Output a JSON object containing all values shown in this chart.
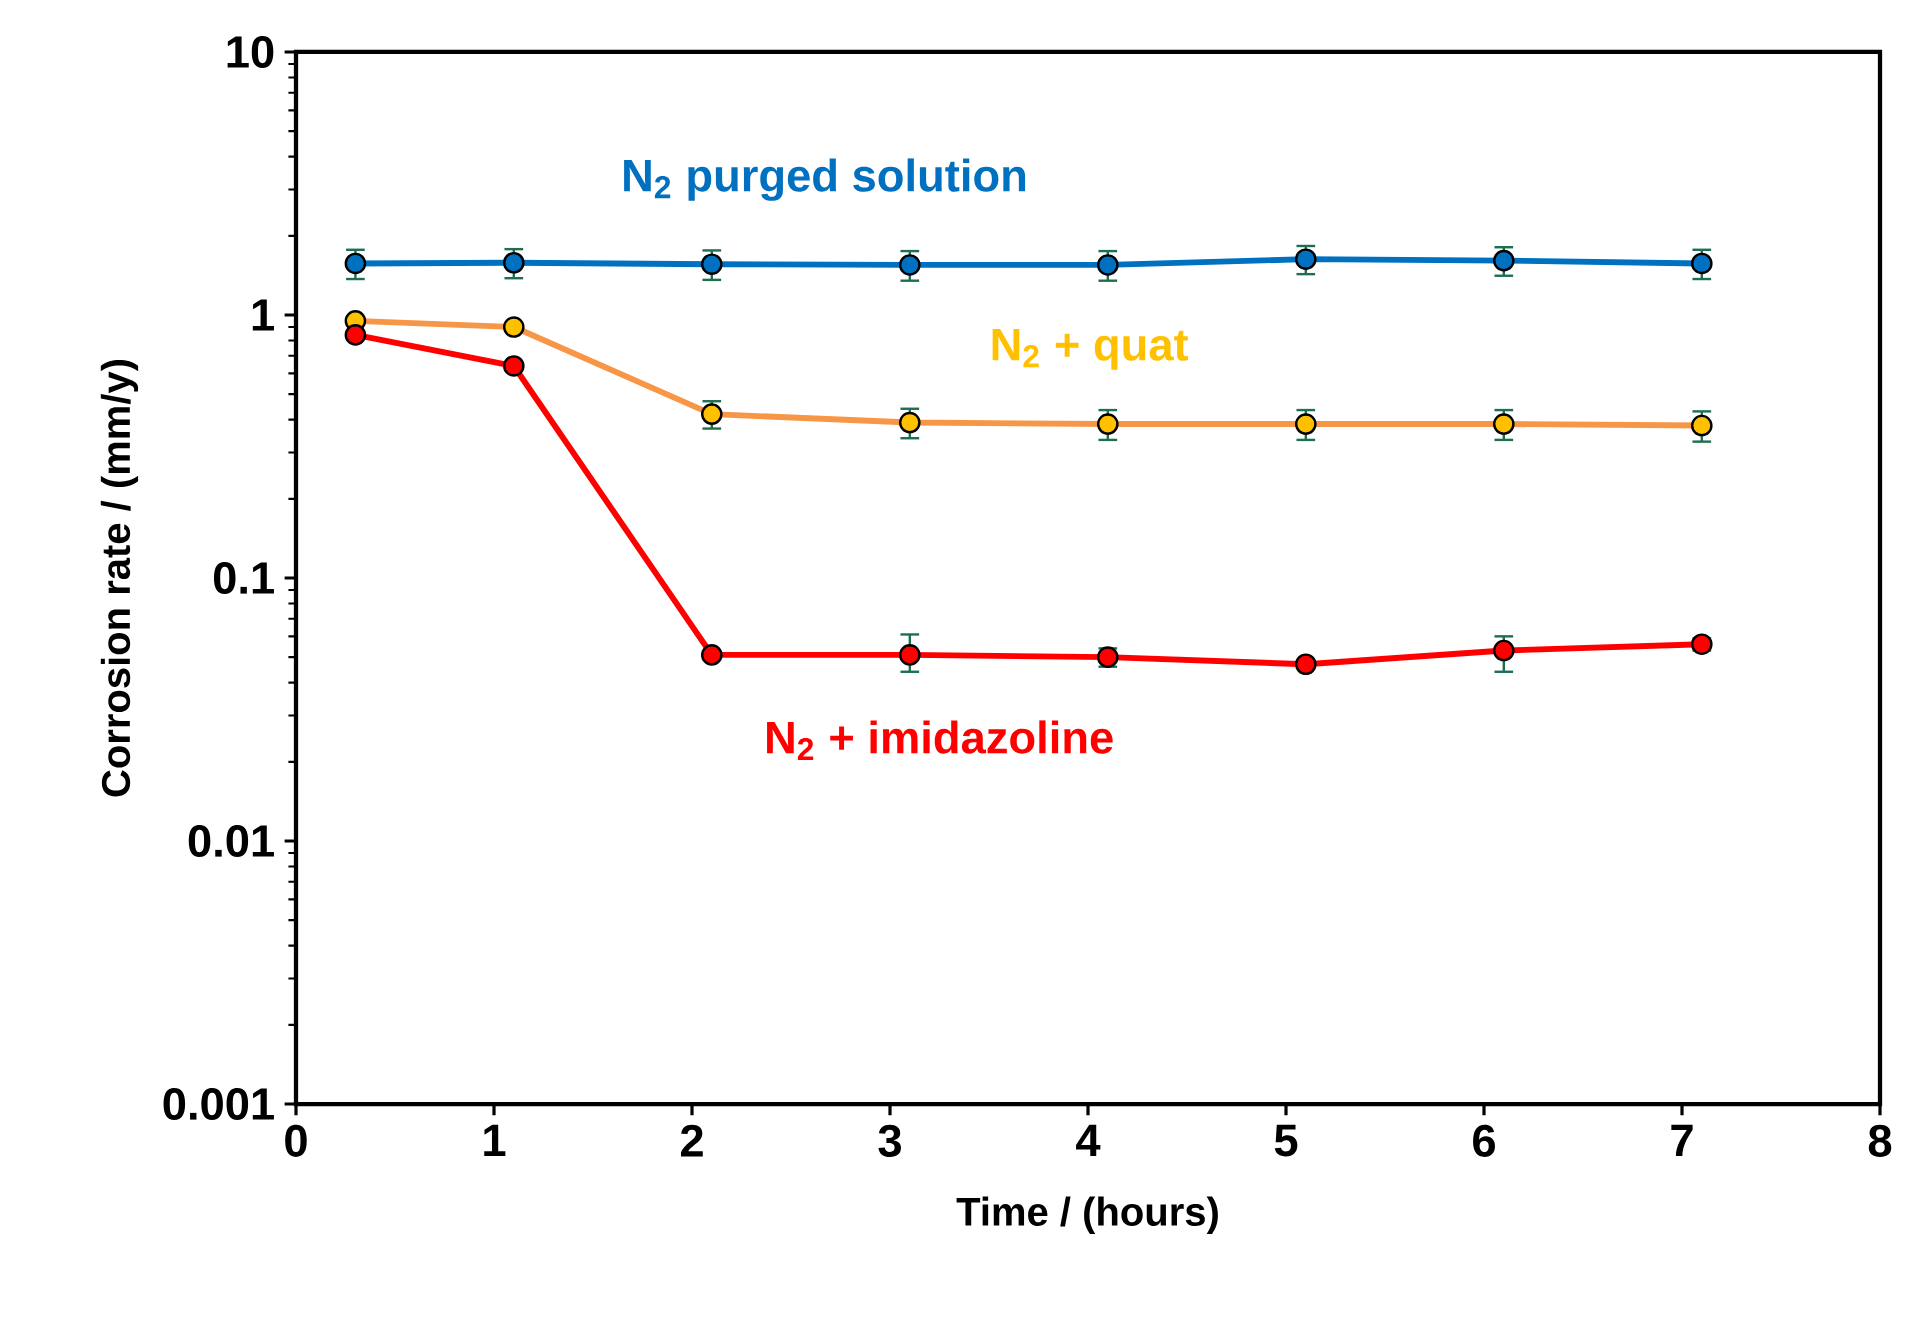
{
  "chart_data": {
    "type": "line",
    "xlabel": "Time / (hours)",
    "ylabel": "Corrosion rate / (mm/y)",
    "log": "y",
    "xlim": [
      0,
      8
    ],
    "xticks": [
      0,
      1,
      2,
      3,
      4,
      5,
      6,
      7,
      8
    ],
    "ylim": [
      0.001,
      10
    ],
    "yticks": [
      0.001,
      0.01,
      0.1,
      1,
      10
    ],
    "grid": false,
    "marker": "circle",
    "line_style": "solid",
    "x": [
      0.3,
      1.1,
      2.1,
      3.1,
      4.1,
      5.1,
      6.1,
      7.1
    ],
    "series": [
      {
        "name": "N$_{2}$ purged solution",
        "color": "#0070c0",
        "values": [
          1.57,
          1.58,
          1.56,
          1.55,
          1.55,
          1.63,
          1.61,
          1.57
        ],
        "errors": [
          0.2,
          0.2,
          0.2,
          0.2,
          0.2,
          0.2,
          0.2,
          0.2
        ]
      },
      {
        "name": "N$_{2}$ + quat",
        "color": "#f79646",
        "colors": [
          "#ffc000",
          "#ffc000",
          "#ffc000",
          "#ffc000",
          "#ffc000",
          "#ffc000",
          "#ffc000",
          "#ffc000"
        ],
        "values": [
          0.95,
          0.9,
          0.42,
          0.39,
          0.385,
          0.385,
          0.385,
          0.38
        ],
        "errors": [
          null,
          null,
          0.05,
          0.05,
          0.05,
          0.05,
          0.05,
          0.05
        ]
      },
      {
        "name": "N$_{2}$ + imidazoline",
        "color": "#ff0000",
        "values": [
          0.84,
          0.64,
          0.051,
          0.051,
          0.05,
          0.047,
          0.053,
          0.056
        ],
        "errors": [
          null,
          null,
          null,
          [
            0.044,
            0.061
          ],
          0.004,
          null,
          [
            0.044,
            0.06
          ],
          0.003
        ]
      }
    ]
  }
}
